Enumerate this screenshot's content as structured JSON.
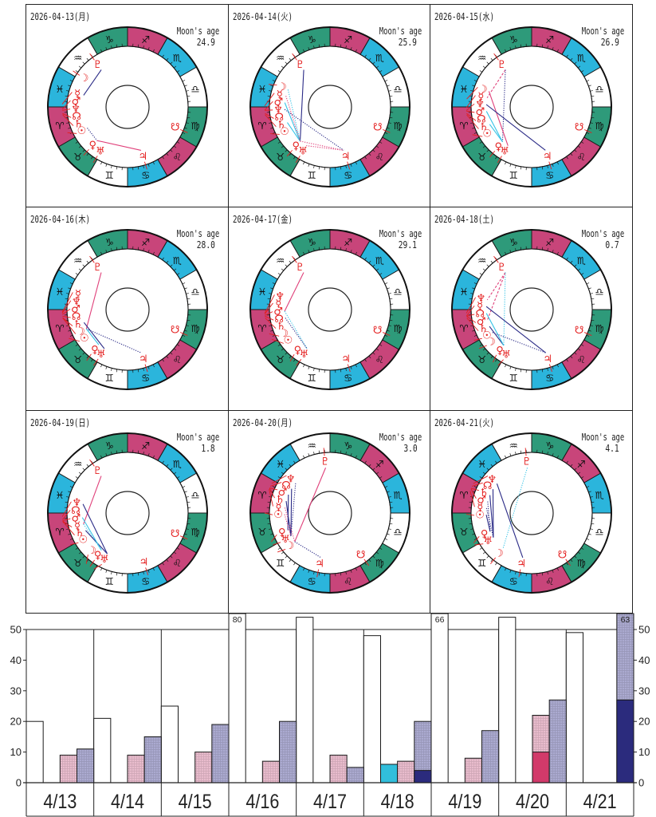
{
  "wheels": {
    "moon_age_label": "Moon's age",
    "sign_glyphs": [
      "♈",
      "♉",
      "♊",
      "♋",
      "♌",
      "♍",
      "♎",
      "♏",
      "♐",
      "♑",
      "♒",
      "♓"
    ],
    "sign_colors": [
      "#c8457a",
      "#2e9a7a",
      "#ffffff",
      "#2bb5dc",
      "#c8457a",
      "#2e9a7a",
      "#ffffff",
      "#2bb5dc",
      "#c8457a",
      "#2e9a7a",
      "#ffffff",
      "#2bb5dc"
    ],
    "body_color": "#e41e1e",
    "body_glyphs": {
      "sun": "☉",
      "moon": "☽",
      "mercury": "☿",
      "venus": "♀",
      "mars": "♂",
      "jupiter": "♃",
      "saturn": "♄",
      "uranus": "♅",
      "neptune": "♆",
      "pluto": "♇",
      "north_node": "☊",
      "south_node": "☋"
    },
    "aspect_colors": {
      "pink": "#e0407a",
      "navy": "#2a2a86",
      "cyan": "#38c4e6"
    },
    "panels": [
      {
        "date": "2026-04-13(月)",
        "moon_age": "24.9",
        "rising_sign_index": 0,
        "positions": {
          "sun": 23.2,
          "moon": 326.6,
          "mercury": 357.5,
          "venus": 47.7,
          "mars": 2.0,
          "jupiter": 107.3,
          "saturn": 6.8,
          "uranus": 58.4,
          "neptune": 3.0,
          "pluto": 305.3,
          "north_node": 5.8,
          "south_node": 156.8
        },
        "aspects": [
          {
            "a": "pluto",
            "b": "mercury",
            "color": "navy",
            "style": "solid"
          },
          {
            "a": "venus",
            "b": "jupiter",
            "color": "pink",
            "style": "solid"
          },
          {
            "a": "sun",
            "b": "venus",
            "color": "navy",
            "style": "dotted"
          }
        ]
      },
      {
        "date": "2026-04-14(火)",
        "moon_age": "25.9",
        "rising_sign_index": 0,
        "positions": {
          "sun": 24.2,
          "moon": 339.8,
          "mercury": 359.1,
          "venus": 48.9,
          "mars": 2.8,
          "jupiter": 107.5,
          "saturn": 6.9,
          "uranus": 58.5,
          "neptune": 3.0,
          "pluto": 305.3,
          "north_node": 5.8,
          "south_node": 156.8
        },
        "aspects": [
          {
            "a": "pluto",
            "b": "venus",
            "color": "navy",
            "style": "solid"
          },
          {
            "a": "moon",
            "b": "venus",
            "color": "cyan",
            "style": "dotted"
          },
          {
            "a": "mars",
            "b": "venus",
            "color": "cyan",
            "style": "solid"
          },
          {
            "a": "saturn",
            "b": "venus",
            "color": "cyan",
            "style": "solid"
          },
          {
            "a": "mercury",
            "b": "venus",
            "color": "pink",
            "style": "dotted"
          },
          {
            "a": "venus",
            "b": "jupiter",
            "color": "pink",
            "style": "dotted"
          },
          {
            "a": "uranus",
            "b": "jupiter",
            "color": "pink",
            "style": "dotted"
          },
          {
            "a": "neptune",
            "b": "jupiter",
            "color": "navy",
            "style": "dotted"
          }
        ]
      },
      {
        "date": "2026-04-15(水)",
        "moon_age": "26.9",
        "rising_sign_index": 0,
        "positions": {
          "sun": 25.1,
          "moon": 353.0,
          "mercury": 0.7,
          "venus": 50.1,
          "mars": 3.6,
          "jupiter": 107.6,
          "saturn": 7.0,
          "uranus": 58.6,
          "neptune": 3.1,
          "pluto": 305.3,
          "north_node": 5.8,
          "south_node": 156.7
        },
        "aspects": [
          {
            "a": "pluto",
            "b": "mercury",
            "color": "pink",
            "style": "dashed"
          },
          {
            "a": "pluto",
            "b": "venus",
            "color": "navy",
            "style": "dotted"
          },
          {
            "a": "moon",
            "b": "uranus",
            "color": "pink",
            "style": "solid"
          },
          {
            "a": "neptune",
            "b": "jupiter",
            "color": "navy",
            "style": "solid"
          },
          {
            "a": "saturn",
            "b": "venus",
            "color": "cyan",
            "style": "solid"
          },
          {
            "a": "mars",
            "b": "venus",
            "color": "cyan",
            "style": "solid"
          }
        ]
      },
      {
        "date": "2026-04-16(木)",
        "moon_age": "28.0",
        "rising_sign_index": 0,
        "positions": {
          "sun": 26.1,
          "moon": 7.4,
          "mercury": 2.3,
          "venus": 51.3,
          "mars": 4.3,
          "jupiter": 107.8,
          "saturn": 7.2,
          "uranus": 58.7,
          "neptune": 3.1,
          "pluto": 305.4,
          "north_node": 5.8,
          "south_node": 156.7
        },
        "aspects": [
          {
            "a": "pluto",
            "b": "moon",
            "color": "pink",
            "style": "solid"
          },
          {
            "a": "moon",
            "b": "jupiter",
            "color": "navy",
            "style": "dotted"
          },
          {
            "a": "saturn",
            "b": "uranus",
            "color": "navy",
            "style": "solid"
          },
          {
            "a": "moon",
            "b": "venus",
            "color": "cyan",
            "style": "solid"
          }
        ]
      },
      {
        "date": "2026-04-17(金)",
        "moon_age": "29.1",
        "rising_sign_index": 0,
        "positions": {
          "sun": 27.1,
          "moon": 21.7,
          "mercury": 3.9,
          "venus": 52.5,
          "mars": 5.1,
          "jupiter": 108.0,
          "saturn": 7.3,
          "uranus": 58.8,
          "neptune": 3.1,
          "pluto": 305.4,
          "north_node": 5.8,
          "south_node": 156.6
        },
        "aspects": [
          {
            "a": "pluto",
            "b": "mars",
            "color": "pink",
            "style": "solid"
          },
          {
            "a": "mars",
            "b": "uranus",
            "color": "cyan",
            "style": "dotted"
          },
          {
            "a": "north_node",
            "b": "uranus",
            "color": "navy",
            "style": "dotted"
          }
        ]
      },
      {
        "date": "2026-04-18(土)",
        "moon_age": "0.7",
        "rising_sign_index": 0,
        "positions": {
          "sun": 28.1,
          "moon": 36.5,
          "mercury": 5.5,
          "venus": 53.7,
          "mars": 5.9,
          "jupiter": 108.1,
          "saturn": 7.4,
          "uranus": 58.9,
          "neptune": 3.2,
          "pluto": 305.4,
          "north_node": 5.8,
          "south_node": 156.6
        },
        "aspects": [
          {
            "a": "pluto",
            "b": "neptune",
            "color": "pink",
            "style": "dashed"
          },
          {
            "a": "pluto",
            "b": "mars",
            "color": "pink",
            "style": "dashed"
          },
          {
            "a": "pluto",
            "b": "venus",
            "color": "cyan",
            "style": "dotted"
          },
          {
            "a": "mercury",
            "b": "jupiter",
            "color": "navy",
            "style": "solid"
          },
          {
            "a": "saturn",
            "b": "venus",
            "color": "navy",
            "style": "solid"
          },
          {
            "a": "sun",
            "b": "jupiter",
            "color": "navy",
            "style": "dotted"
          },
          {
            "a": "north_node",
            "b": "venus",
            "color": "cyan",
            "style": "solid"
          }
        ]
      },
      {
        "date": "2026-04-19(日)",
        "moon_age": "1.8",
        "rising_sign_index": 0,
        "positions": {
          "sun": 29.0,
          "moon": 50.9,
          "mercury": 7.1,
          "venus": 54.9,
          "mars": 6.7,
          "jupiter": 108.3,
          "saturn": 7.5,
          "uranus": 59.0,
          "neptune": 3.2,
          "pluto": 305.4,
          "north_node": 5.8,
          "south_node": 156.5
        },
        "aspects": [
          {
            "a": "pluto",
            "b": "mercury",
            "color": "pink",
            "style": "solid"
          },
          {
            "a": "neptune",
            "b": "uranus",
            "color": "navy",
            "style": "solid"
          },
          {
            "a": "mercury",
            "b": "venus",
            "color": "cyan",
            "style": "dotted"
          },
          {
            "a": "saturn",
            "b": "uranus",
            "color": "navy",
            "style": "solid"
          },
          {
            "a": "mars",
            "b": "venus",
            "color": "cyan",
            "style": "solid"
          }
        ]
      },
      {
        "date": "2026-04-20(月)",
        "moon_age": "3.0",
        "rising_sign_index": 1,
        "positions": {
          "sun": 30.0,
          "moon": 66.6,
          "mercury": 8.7,
          "venus": 56.1,
          "mars": 7.5,
          "jupiter": 108.5,
          "saturn": 7.7,
          "uranus": 59.1,
          "neptune": 3.2,
          "pluto": 305.5,
          "north_node": 5.8,
          "south_node": 156.5
        },
        "aspects": [
          {
            "a": "pluto",
            "b": "moon",
            "color": "pink",
            "style": "solid"
          },
          {
            "a": "moon",
            "b": "jupiter",
            "color": "navy",
            "style": "dotted"
          },
          {
            "a": "neptune",
            "b": "uranus",
            "color": "navy",
            "style": "dotted"
          },
          {
            "a": "north_node",
            "b": "uranus",
            "color": "navy",
            "style": "solid"
          },
          {
            "a": "mercury",
            "b": "moon",
            "color": "pink",
            "style": "dotted"
          },
          {
            "a": "saturn",
            "b": "uranus",
            "color": "navy",
            "style": "solid"
          },
          {
            "a": "mars",
            "b": "venus",
            "color": "navy",
            "style": "solid"
          },
          {
            "a": "sun",
            "b": "uranus",
            "color": "pink",
            "style": "dotted"
          }
        ]
      },
      {
        "date": "2026-04-21(火)",
        "moon_age": "4.1",
        "rising_sign_index": 1,
        "positions": {
          "sun": 31.0,
          "moon": 81.0,
          "mercury": 10.3,
          "venus": 57.3,
          "mars": 8.2,
          "jupiter": 108.7,
          "saturn": 7.8,
          "uranus": 59.2,
          "neptune": 3.3,
          "pluto": 305.5,
          "north_node": 5.8,
          "south_node": 156.4
        },
        "aspects": [
          {
            "a": "pluto",
            "b": "moon",
            "color": "cyan",
            "style": "dotted"
          },
          {
            "a": "neptune",
            "b": "jupiter",
            "color": "navy",
            "style": "solid"
          },
          {
            "a": "north_node",
            "b": "uranus",
            "color": "navy",
            "style": "solid"
          },
          {
            "a": "saturn",
            "b": "uranus",
            "color": "navy",
            "style": "solid"
          },
          {
            "a": "mars",
            "b": "venus",
            "color": "navy",
            "style": "dotted"
          },
          {
            "a": "mercury",
            "b": "uranus",
            "color": "navy",
            "style": "dotted"
          },
          {
            "a": "sun",
            "b": "venus",
            "color": "navy",
            "style": "solid"
          }
        ]
      }
    ]
  },
  "chart_data": {
    "type": "bar",
    "title": "",
    "xlabel": "",
    "ylabel": "",
    "categories": [
      "4/13",
      "4/14",
      "4/15",
      "4/16",
      "4/17",
      "4/18",
      "4/19",
      "4/20",
      "4/21"
    ],
    "ylim": [
      0,
      50
    ],
    "overflow_max": 55.2,
    "yticks": [
      0,
      10,
      20,
      30,
      40,
      50
    ],
    "ytick_labels": [
      "0",
      "10",
      "20",
      "30",
      "40",
      "50"
    ],
    "grid": false,
    "legend": null,
    "series": [
      {
        "name": "white",
        "color": "#ffffff",
        "textured": false,
        "values": [
          20,
          21,
          25,
          80,
          54,
          48,
          66,
          54,
          49
        ]
      },
      {
        "name": "cyan",
        "color": "#31bedb",
        "textured": false,
        "values": [
          0,
          0,
          0,
          0,
          0,
          6,
          0,
          0,
          0
        ]
      },
      {
        "name": "pink",
        "color": "#e9bccd",
        "textured": true,
        "values": [
          9,
          9,
          10,
          7,
          9,
          7,
          8,
          22,
          0
        ],
        "stacked_lower": {
          "name": "crimson",
          "color": "#d23a6a",
          "values": [
            0,
            0,
            0,
            0,
            0,
            0,
            0,
            10,
            0
          ]
        }
      },
      {
        "name": "lavender",
        "color": "#abaad0",
        "textured": true,
        "values": [
          11,
          15,
          19,
          20,
          5,
          20,
          17,
          27,
          63
        ],
        "stacked_lower": {
          "name": "navy",
          "color": "#2b2b7d",
          "values": [
            0,
            0,
            0,
            0,
            0,
            4,
            0,
            0,
            27
          ]
        }
      }
    ],
    "value_labels": [
      {
        "series": 0,
        "category": 3,
        "text": "80"
      },
      {
        "series": 0,
        "category": 6,
        "text": "66"
      },
      {
        "series": 3,
        "category": 8,
        "text": "63"
      }
    ]
  }
}
